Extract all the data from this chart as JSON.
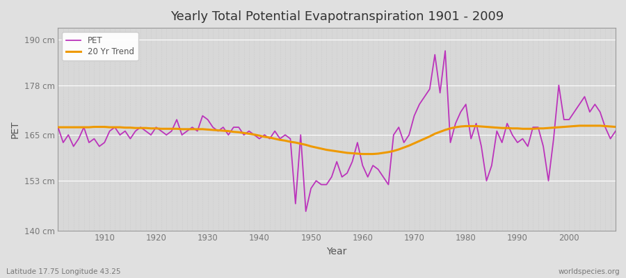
{
  "title": "Yearly Total Potential Evapotranspiration 1901 - 2009",
  "xlabel": "Year",
  "ylabel": "PET",
  "lat_lon_label": "Latitude 17.75 Longitude 43.25",
  "source_label": "worldspecies.org",
  "ylim": [
    140,
    193
  ],
  "yticks": [
    140,
    153,
    165,
    178,
    190
  ],
  "ytick_labels": [
    "140 cm",
    "153 cm",
    "165 cm",
    "178 cm",
    "190 cm"
  ],
  "xlim_min": 1901,
  "xlim_max": 2009,
  "xticks": [
    1910,
    1920,
    1930,
    1940,
    1950,
    1960,
    1970,
    1980,
    1990,
    2000
  ],
  "pet_color": "#bb33bb",
  "trend_color": "#ee9900",
  "bg_color": "#e0e0e0",
  "plot_bg_color": "#d8d8d8",
  "grid_color_h": "#ffffff",
  "grid_color_v": "#cccccc",
  "years": [
    1901,
    1902,
    1903,
    1904,
    1905,
    1906,
    1907,
    1908,
    1909,
    1910,
    1911,
    1912,
    1913,
    1914,
    1915,
    1916,
    1917,
    1918,
    1919,
    1920,
    1921,
    1922,
    1923,
    1924,
    1925,
    1926,
    1927,
    1928,
    1929,
    1930,
    1931,
    1932,
    1933,
    1934,
    1935,
    1936,
    1937,
    1938,
    1939,
    1940,
    1941,
    1942,
    1943,
    1944,
    1945,
    1946,
    1947,
    1948,
    1949,
    1950,
    1951,
    1952,
    1953,
    1954,
    1955,
    1956,
    1957,
    1958,
    1959,
    1960,
    1961,
    1962,
    1963,
    1964,
    1965,
    1966,
    1967,
    1968,
    1969,
    1970,
    1971,
    1972,
    1973,
    1974,
    1975,
    1976,
    1977,
    1978,
    1979,
    1980,
    1981,
    1982,
    1983,
    1984,
    1985,
    1986,
    1987,
    1988,
    1989,
    1990,
    1991,
    1992,
    1993,
    1994,
    1995,
    1996,
    1997,
    1998,
    1999,
    2000,
    2001,
    2002,
    2003,
    2004,
    2005,
    2006,
    2007,
    2008,
    2009
  ],
  "pet_values": [
    167,
    163,
    165,
    162,
    164,
    167,
    163,
    164,
    162,
    163,
    166,
    167,
    165,
    166,
    164,
    166,
    167,
    166,
    165,
    167,
    166,
    165,
    166,
    169,
    165,
    166,
    167,
    166,
    170,
    169,
    167,
    166,
    167,
    165,
    167,
    167,
    165,
    166,
    165,
    164,
    165,
    164,
    166,
    164,
    165,
    164,
    147,
    165,
    145,
    151,
    153,
    152,
    152,
    154,
    158,
    154,
    155,
    158,
    163,
    157,
    154,
    157,
    156,
    154,
    152,
    165,
    167,
    163,
    165,
    170,
    173,
    175,
    177,
    186,
    176,
    187,
    163,
    168,
    171,
    173,
    164,
    168,
    162,
    153,
    157,
    166,
    163,
    168,
    165,
    163,
    164,
    162,
    167,
    167,
    162,
    153,
    164,
    178,
    169,
    169,
    171,
    173,
    175,
    171,
    173,
    171,
    167,
    164,
    166
  ],
  "trend_values": [
    167.0,
    167.0,
    167.0,
    167.0,
    167.0,
    167.0,
    167.0,
    167.1,
    167.1,
    167.1,
    167.0,
    167.0,
    167.0,
    166.9,
    166.9,
    166.8,
    166.8,
    166.8,
    166.7,
    166.7,
    166.6,
    166.6,
    166.6,
    166.6,
    166.5,
    166.5,
    166.5,
    166.5,
    166.5,
    166.4,
    166.3,
    166.2,
    166.1,
    166.0,
    165.8,
    165.7,
    165.5,
    165.3,
    165.1,
    164.8,
    164.5,
    164.3,
    164.0,
    163.7,
    163.5,
    163.2,
    163.0,
    162.7,
    162.4,
    162.0,
    161.7,
    161.4,
    161.1,
    160.9,
    160.7,
    160.5,
    160.3,
    160.2,
    160.1,
    160.0,
    160.0,
    160.0,
    160.1,
    160.3,
    160.5,
    160.8,
    161.2,
    161.7,
    162.2,
    162.8,
    163.4,
    164.0,
    164.6,
    165.3,
    165.8,
    166.3,
    166.7,
    167.0,
    167.2,
    167.3,
    167.3,
    167.3,
    167.2,
    167.1,
    167.0,
    166.9,
    166.8,
    166.8,
    166.7,
    166.7,
    166.6,
    166.6,
    166.6,
    166.7,
    166.7,
    166.8,
    166.9,
    167.0,
    167.1,
    167.2,
    167.3,
    167.4,
    167.4,
    167.4,
    167.4,
    167.4,
    167.3,
    167.2,
    167.1
  ]
}
